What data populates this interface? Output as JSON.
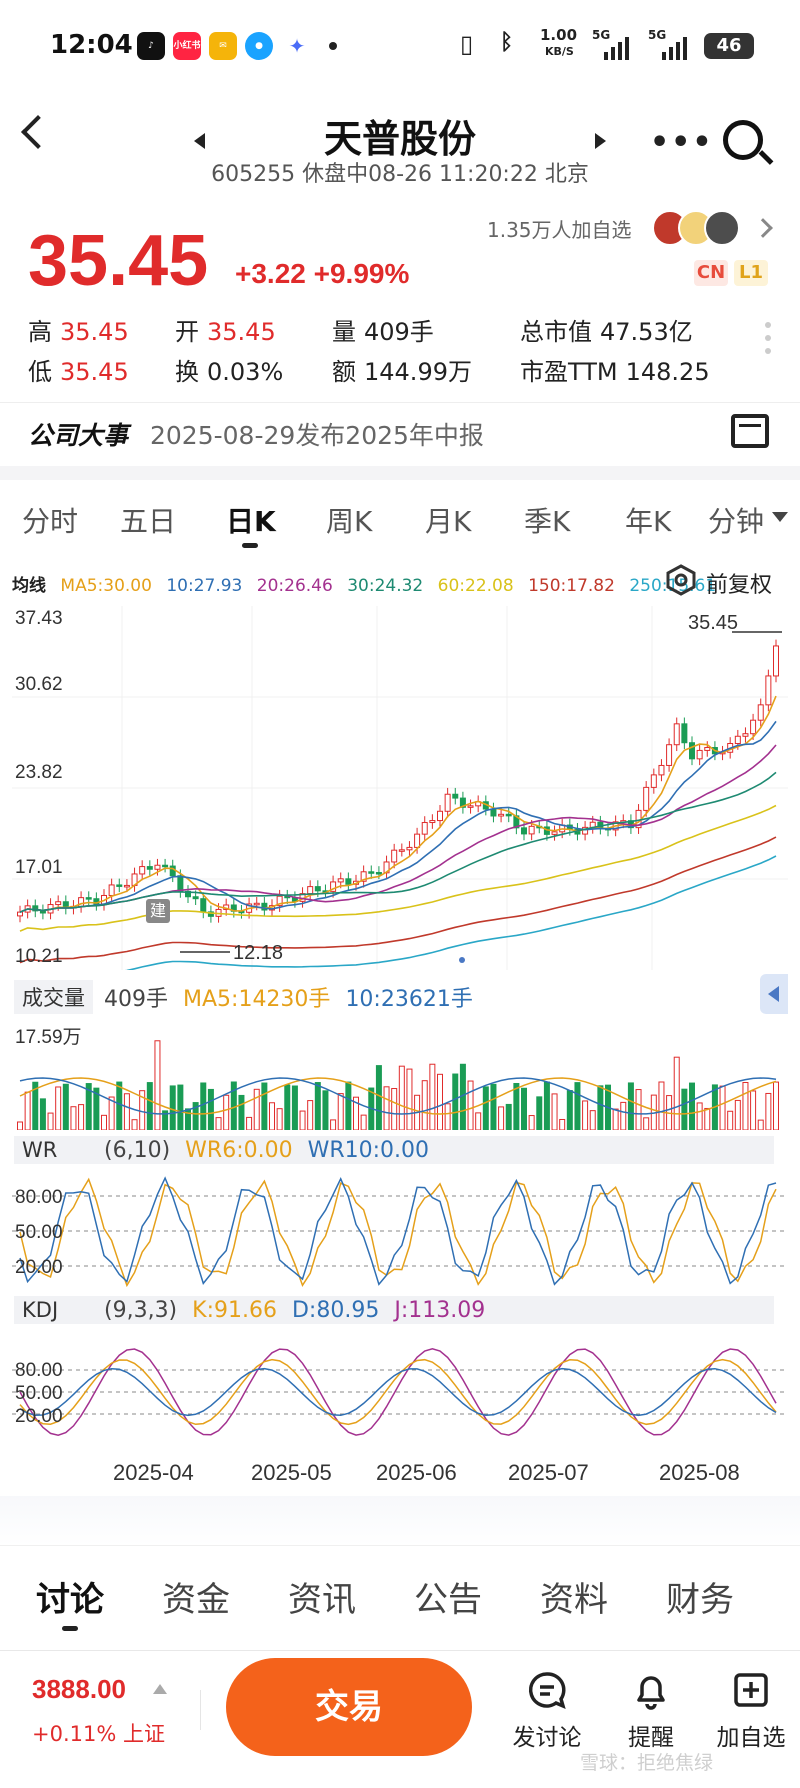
{
  "status_bar": {
    "time": "12:04",
    "apps": [
      "tiktok",
      "小红书",
      "mail",
      "qq",
      "bird"
    ],
    "net_speed_top": "1.00",
    "net_speed_bottom": "KB/S",
    "net1": "5G",
    "net2": "5G",
    "battery": "46"
  },
  "header": {
    "title": "天普股份",
    "subtitle": "605255 休盘中08-26 11:20:22 北京"
  },
  "quote": {
    "price": "35.45",
    "change": "+3.22 +9.99%",
    "watchers": "1.35万人加自选",
    "badge_cn": "CN",
    "badge_l1": "L1",
    "stats": [
      {
        "k": "高",
        "v": "35.45",
        "red": true
      },
      {
        "k": "开",
        "v": "35.45",
        "red": true
      },
      {
        "k": "量",
        "v": "409手",
        "red": false
      },
      {
        "k": "总市值",
        "v": "47.53亿",
        "red": false
      },
      {
        "k": "低",
        "v": "35.45",
        "red": true
      },
      {
        "k": "换",
        "v": "0.03%",
        "red": false
      },
      {
        "k": "额",
        "v": "144.99万",
        "red": false
      },
      {
        "k": "市盈TTM",
        "v": "148.25",
        "red": false
      }
    ]
  },
  "event": {
    "label": "公司大事",
    "text": "2025-08-29发布2025年中报"
  },
  "chart_tabs": [
    "分时",
    "五日",
    "日K",
    "周K",
    "月K",
    "季K",
    "年K",
    "分钟"
  ],
  "chart_tab_active": 2,
  "ma_legend": {
    "label": "均线",
    "items": [
      {
        "text": "MA5:30.00",
        "color": "#e5a01a"
      },
      {
        "text": "10:27.93",
        "color": "#2f6fb3"
      },
      {
        "text": "20:26.46",
        "color": "#a3318f"
      },
      {
        "text": "30:24.32",
        "color": "#1e8a72"
      },
      {
        "text": "60:22.08",
        "color": "#d9c21a"
      },
      {
        "text": "150:17.82",
        "color": "#c0392b"
      },
      {
        "text": "250:15.61",
        "color": "#2aa7c7"
      }
    ],
    "adjust": "前复权"
  },
  "volume_legend": {
    "label": "成交量",
    "items": [
      {
        "text": "409手",
        "color": "#444444"
      },
      {
        "text": "MA5:14230手",
        "color": "#e5a01a"
      },
      {
        "text": "10:23621手",
        "color": "#2f6fb3"
      }
    ],
    "max": "17.59万"
  },
  "wr_legend": {
    "label": "WR",
    "items": [
      {
        "text": "(6,10)",
        "color": "#444444"
      },
      {
        "text": "WR6:0.00",
        "color": "#e5a01a"
      },
      {
        "text": "WR10:0.00",
        "color": "#2f6fb3"
      }
    ],
    "levels": [
      "80.00",
      "50.00",
      "20.00"
    ]
  },
  "kdj_legend": {
    "label": "KDJ",
    "items": [
      {
        "text": "(9,3,3)",
        "color": "#444444"
      },
      {
        "text": "K:91.66",
        "color": "#e5a01a"
      },
      {
        "text": "D:80.95",
        "color": "#2f6fb3"
      },
      {
        "text": "J:113.09",
        "color": "#a3318f"
      }
    ],
    "levels": [
      "80.00",
      "50.00",
      "20.00"
    ]
  },
  "chart_data": {
    "type": "candlestick",
    "y_ticks": [
      "37.43",
      "30.62",
      "23.82",
      "17.01",
      "10.21"
    ],
    "ylim": [
      10.21,
      37.43
    ],
    "high_label": "35.45",
    "low_label": "12.18",
    "marker_label": "建",
    "x_ticks": [
      "2025-04",
      "2025-05",
      "2025-06",
      "2025-07",
      "2025-08"
    ],
    "series": [
      {
        "name": "MA5",
        "color": "#e5a01a"
      },
      {
        "name": "10",
        "color": "#2f6fb3"
      },
      {
        "name": "20",
        "color": "#a3318f"
      },
      {
        "name": "30",
        "color": "#1e8a72"
      },
      {
        "name": "60",
        "color": "#d9c21a"
      },
      {
        "name": "150",
        "color": "#c0392b"
      },
      {
        "name": "250",
        "color": "#2aa7c7"
      }
    ]
  },
  "bottom_tabs": [
    "讨论",
    "资金",
    "资讯",
    "公告",
    "资料",
    "财务"
  ],
  "footer": {
    "index_value": "3888.00",
    "index_change": "+0.11% 上证",
    "trade": "交易",
    "buttons": [
      "发讨论",
      "提醒",
      "加自选"
    ],
    "watermark": "雪球：拒绝焦绿"
  }
}
